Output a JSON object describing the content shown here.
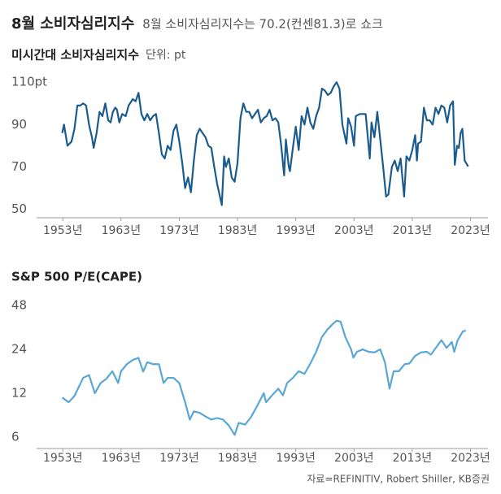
{
  "header": {
    "title": "8월 소비자심리지수",
    "subtitle": "8월 소비자심리지수는 70.2(컨센81.3)로 쇼크"
  },
  "source": "자료=REFINITIV, Robert Shiller, KB증권",
  "chart_data": [
    {
      "type": "line",
      "title": "미시간대 소비자심리지수",
      "unit": "단위: pt",
      "color": "#1b5c8f",
      "log_scale": false,
      "x": [
        1952.9,
        1953.2,
        1953.8,
        1954.5,
        1955.0,
        1955.5,
        1956.0,
        1956.5,
        1957.0,
        1957.5,
        1958.0,
        1958.3,
        1958.8,
        1959.3,
        1959.8,
        1960.3,
        1960.8,
        1961.2,
        1961.6,
        1962.0,
        1962.3,
        1962.7,
        1963.2,
        1963.8,
        1964.3,
        1965.0,
        1965.5,
        1966.0,
        1966.5,
        1967.0,
        1967.5,
        1968.0,
        1968.5,
        1969.0,
        1969.5,
        1970.0,
        1970.5,
        1971.0,
        1971.5,
        1972.0,
        1972.5,
        1973.0,
        1973.5,
        1974.0,
        1974.5,
        1975.0,
        1975.5,
        1976.0,
        1976.5,
        1977.0,
        1977.5,
        1978.0,
        1978.5,
        1979.0,
        1979.5,
        1980.3,
        1980.7,
        1981.0,
        1981.5,
        1982.0,
        1982.5,
        1983.0,
        1983.5,
        1984.0,
        1984.5,
        1985.0,
        1985.5,
        1986.0,
        1986.5,
        1987.0,
        1987.5,
        1988.0,
        1988.5,
        1989.0,
        1989.5,
        1990.0,
        1990.5,
        1991.0,
        1991.3,
        1991.8,
        1992.0,
        1992.5,
        1993.0,
        1993.5,
        1994.0,
        1994.5,
        1995.0,
        1995.5,
        1996.0,
        1996.5,
        1997.0,
        1997.5,
        1998.0,
        1998.5,
        1999.0,
        1999.5,
        2000.0,
        2000.5,
        2001.0,
        2001.7,
        2002.0,
        2002.5,
        2003.0,
        2003.3,
        2004.0,
        2004.5,
        2005.0,
        2005.7,
        2006.0,
        2006.5,
        2007.0,
        2007.5,
        2008.0,
        2008.5,
        2008.9,
        2009.5,
        2010.0,
        2010.5,
        2011.0,
        2011.6,
        2012.0,
        2012.5,
        2013.0,
        2013.5,
        2013.8,
        2014.0,
        2014.5,
        2015.0,
        2015.5,
        2016.0,
        2016.5,
        2017.0,
        2017.5,
        2018.0,
        2018.5,
        2019.0,
        2019.5,
        2020.0,
        2020.3,
        2020.7,
        2021.0,
        2021.3,
        2021.6,
        2022.0,
        2022.6
      ],
      "values": [
        86,
        90,
        80,
        82,
        88,
        99,
        99,
        100,
        99,
        90,
        84,
        79,
        86,
        96,
        94,
        100,
        92,
        91,
        96,
        98,
        97,
        91,
        95,
        94,
        99,
        102,
        101,
        105,
        95,
        92,
        95,
        92,
        94,
        95,
        86,
        76,
        74,
        80,
        78,
        87,
        90,
        82,
        72,
        60,
        65,
        58,
        73,
        85,
        88,
        86,
        84,
        80,
        79,
        70,
        62,
        52,
        75,
        70,
        74,
        65,
        63,
        72,
        93,
        100,
        96,
        96,
        93,
        95,
        97,
        91,
        93,
        94,
        97,
        92,
        93,
        91,
        80,
        66,
        83,
        70,
        68,
        79,
        89,
        78,
        94,
        90,
        98,
        91,
        88,
        94,
        98,
        107,
        106,
        104,
        105,
        108,
        110,
        107,
        90,
        81,
        93,
        89,
        80,
        94,
        95,
        95,
        95,
        74,
        91,
        84,
        96,
        83,
        70,
        56,
        57,
        70,
        73,
        68,
        74,
        56,
        75,
        73,
        78,
        85,
        73,
        81,
        82,
        98,
        92,
        92,
        90,
        98,
        95,
        99,
        98,
        91,
        99,
        101,
        71,
        80,
        79,
        86,
        88,
        73,
        70.2
      ],
      "xlim": [
        1948.5,
        2026
      ],
      "xticks": [
        {
          "value": 1953,
          "label": "1953년"
        },
        {
          "value": 1963,
          "label": "1963년"
        },
        {
          "value": 1973,
          "label": "1973년"
        },
        {
          "value": 1983,
          "label": "1983년"
        },
        {
          "value": 1993,
          "label": "1993년"
        },
        {
          "value": 2003,
          "label": "2003년"
        },
        {
          "value": 2013,
          "label": "2013년"
        },
        {
          "value": 2023,
          "label": "2023년"
        }
      ],
      "ylim": [
        46,
        112
      ],
      "yticks": [
        50,
        70,
        90,
        {
          "value": 110,
          "label": "110pt"
        }
      ]
    },
    {
      "type": "line",
      "title": "S&P 500 P/E(CAPE)",
      "color": "#5aa6d6",
      "log_scale": true,
      "x": [
        1952.9,
        1954,
        1955,
        1956.5,
        1957.5,
        1958.5,
        1959.5,
        1960.5,
        1961.5,
        1962.5,
        1963,
        1964,
        1965,
        1966,
        1966.8,
        1967.5,
        1968.5,
        1969.5,
        1970.3,
        1971,
        1972,
        1973,
        1974,
        1974.8,
        1975.5,
        1976.5,
        1977.5,
        1978.5,
        1979.5,
        1980.5,
        1981.5,
        1982.5,
        1983.2,
        1984.3,
        1985.3,
        1986.3,
        1987.5,
        1987.9,
        1989,
        1990,
        1990.8,
        1991.5,
        1992.5,
        1993.5,
        1994.5,
        1995.5,
        1996.5,
        1997.5,
        1998.5,
        1999.5,
        2000,
        2000.7,
        2001.5,
        2002.5,
        2002.9,
        2003.5,
        2004.5,
        2005.5,
        2006.5,
        2007.5,
        2008.3,
        2009.1,
        2009.8,
        2010.7,
        2011.7,
        2012.5,
        2013.5,
        2014.5,
        2015.5,
        2016.2,
        2017.3,
        2018,
        2018.9,
        2019.8,
        2020.2,
        2020.8,
        2021.7,
        2022.2
      ],
      "values": [
        11.2,
        10.4,
        11.5,
        15.3,
        16,
        12,
        14.1,
        15.1,
        17,
        14.1,
        17,
        19,
        20.3,
        21,
        16.9,
        19.6,
        19,
        19,
        14.1,
        15.3,
        15.3,
        14.1,
        10.4,
        7.9,
        9,
        8.8,
        8.3,
        7.9,
        8.1,
        7.9,
        7.2,
        6.2,
        7.5,
        7.3,
        8.2,
        9.7,
        12,
        10.4,
        11.7,
        12.9,
        11.6,
        14.1,
        15.3,
        17,
        16.3,
        19.2,
        23.1,
        29.3,
        33.1,
        36.4,
        37.8,
        37.2,
        29.3,
        24,
        21.1,
        23.1,
        24,
        23.1,
        22.9,
        24,
        19.6,
        12.9,
        17,
        17,
        19,
        19.2,
        21.7,
        22.9,
        23.1,
        22.1,
        25.4,
        27.8,
        24.6,
        27,
        23.1,
        27.8,
        32,
        32.3
      ],
      "xlim": [
        1948.5,
        2026
      ],
      "xticks": [
        {
          "value": 1953,
          "label": "1953년"
        },
        {
          "value": 1963,
          "label": "1963년"
        },
        {
          "value": 1973,
          "label": "1973년"
        },
        {
          "value": 1983,
          "label": "1983년"
        },
        {
          "value": 1993,
          "label": "1993년"
        },
        {
          "value": 2003,
          "label": "2003년"
        },
        {
          "value": 2013,
          "label": "2013년"
        },
        {
          "value": 2023,
          "label": "2023년"
        }
      ],
      "ylim": [
        5,
        50
      ],
      "yticks": [
        6,
        12,
        24,
        48
      ]
    }
  ]
}
